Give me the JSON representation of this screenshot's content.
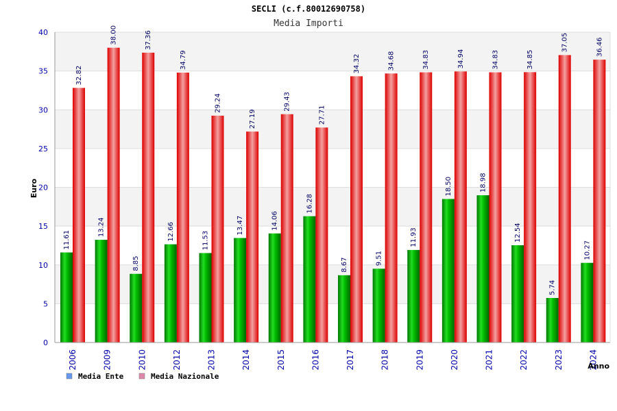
{
  "chart_data": {
    "type": "bar",
    "title": "SECLI (c.f.80012690758)",
    "subtitle": "Media Importi",
    "ylabel": "Euro",
    "xlabel": "Anno",
    "ylim": [
      0,
      40
    ],
    "yticks": [
      0,
      5,
      10,
      15,
      20,
      25,
      30,
      35,
      40
    ],
    "grid": true,
    "legend_position": "bottom-left",
    "categories": [
      "2006",
      "2009",
      "2010",
      "2012",
      "2013",
      "2014",
      "2015",
      "2016",
      "2017",
      "2018",
      "2019",
      "2020",
      "2021",
      "2022",
      "2023",
      "2024"
    ],
    "series": [
      {
        "name": "Media Ente",
        "color": "#00aa00",
        "legend_color": "#6699ee",
        "values": [
          11.61,
          13.24,
          8.85,
          12.66,
          11.53,
          13.47,
          14.06,
          16.28,
          8.67,
          9.51,
          11.93,
          18.5,
          18.98,
          12.54,
          5.74,
          10.27
        ],
        "labels": [
          "11.61",
          "13.24",
          "8.85",
          "12.66",
          "11.53",
          "13.47",
          "14.06",
          "16.28",
          "8.67",
          "9.51",
          "11.93",
          "18.50",
          "18.98",
          "12.54",
          "5.74",
          "10.27"
        ]
      },
      {
        "name": "Media Nazionale",
        "color": "#ee1111",
        "legend_color": "#dd88aa",
        "values": [
          32.82,
          38.0,
          37.36,
          34.79,
          29.24,
          27.19,
          29.43,
          27.71,
          34.32,
          34.68,
          34.83,
          34.94,
          34.83,
          34.85,
          37.05,
          36.46
        ],
        "labels": [
          "32.82",
          "38.00",
          "37.36",
          "34.79",
          "29.24",
          "27.19",
          "29.43",
          "27.71",
          "34.32",
          "34.68",
          "34.83",
          "34.94",
          "34.83",
          "34.85",
          "37.05",
          "36.46"
        ]
      }
    ]
  }
}
